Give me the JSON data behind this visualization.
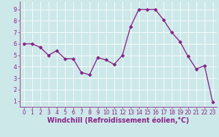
{
  "x": [
    0,
    1,
    2,
    3,
    4,
    5,
    6,
    7,
    8,
    9,
    10,
    11,
    12,
    13,
    14,
    15,
    16,
    17,
    18,
    19,
    20,
    21,
    22,
    23
  ],
  "y": [
    6.0,
    6.0,
    5.7,
    5.0,
    5.4,
    4.7,
    4.7,
    3.5,
    3.3,
    4.8,
    4.6,
    4.2,
    5.0,
    7.5,
    9.0,
    9.0,
    9.0,
    8.1,
    7.0,
    6.2,
    4.9,
    3.8,
    4.1,
    0.9
  ],
  "line_color": "#882288",
  "marker_color": "#882288",
  "bg_color": "#cce8e8",
  "grid_color": "#ffffff",
  "xlabel": "Windchill (Refroidissement éolien,°C)",
  "xlim": [
    -0.5,
    23.5
  ],
  "ylim": [
    0.5,
    9.7
  ],
  "yticks": [
    1,
    2,
    3,
    4,
    5,
    6,
    7,
    8,
    9
  ],
  "xticks": [
    0,
    1,
    2,
    3,
    4,
    5,
    6,
    7,
    8,
    9,
    10,
    11,
    12,
    13,
    14,
    15,
    16,
    17,
    18,
    19,
    20,
    21,
    22,
    23
  ],
  "tick_fontsize": 5.8,
  "xlabel_fontsize": 7.0,
  "marker_size": 2.5,
  "line_width": 1.0
}
